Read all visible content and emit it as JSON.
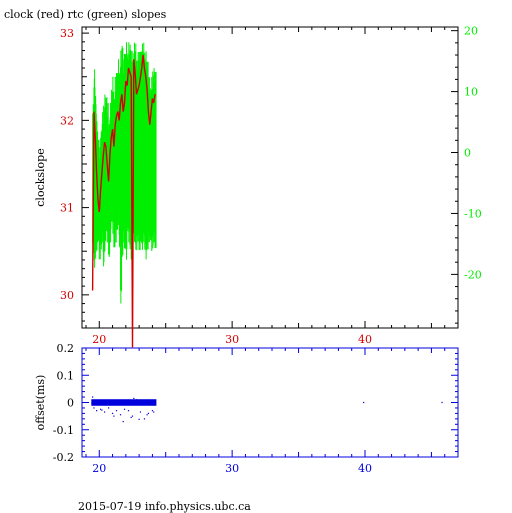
{
  "title": "clock (red) rtc (green) slopes",
  "footer": "2015-07-19 info.physics.ubc.ca",
  "colors": {
    "red": "#d40000",
    "green": "#00ee00",
    "blue": "#0000dd",
    "axis": "#000000"
  },
  "chart_data": [
    {
      "type": "line",
      "panel": "top",
      "ylabel": "clockslope",
      "xlim": [
        18.7,
        47
      ],
      "ylim_left": [
        29.62,
        33.07
      ],
      "ylim_right": [
        -28.8,
        20.6
      ],
      "x_ticks": [
        20,
        30,
        40
      ],
      "y_left_ticks": [
        30,
        31,
        32,
        33
      ],
      "y_right_ticks": [
        -20,
        -10,
        0,
        10,
        20
      ],
      "series": [
        {
          "name": "clock",
          "color": "red",
          "axis": "left",
          "x": [
            19.5,
            19.6,
            19.7,
            19.8,
            19.9,
            20.0,
            20.1,
            20.2,
            20.3,
            20.4,
            20.5,
            20.6,
            20.7,
            20.8,
            20.9,
            21.0,
            21.1,
            21.2,
            21.3,
            21.4,
            21.5,
            21.6,
            21.7,
            21.8,
            21.9,
            22.0,
            22.1,
            22.2,
            22.3,
            22.4,
            22.5,
            22.6,
            22.7,
            22.8,
            22.9,
            23.0,
            23.1,
            23.2,
            23.3,
            23.4,
            23.5,
            23.6,
            23.7,
            23.8,
            23.9,
            24.0,
            24.1,
            24.2
          ],
          "values": [
            30.05,
            32.1,
            31.8,
            31.4,
            31.1,
            30.95,
            31.2,
            31.4,
            31.6,
            31.75,
            31.7,
            31.5,
            31.3,
            31.6,
            31.8,
            31.9,
            31.7,
            31.95,
            32.05,
            32.1,
            32.0,
            32.2,
            32.3,
            32.1,
            32.2,
            32.45,
            32.4,
            32.6,
            32.55,
            32.5,
            29.4,
            32.7,
            32.55,
            32.3,
            32.35,
            32.4,
            32.5,
            32.6,
            32.75,
            32.6,
            32.5,
            32.35,
            32.1,
            31.95,
            32.1,
            32.25,
            32.2,
            32.3
          ]
        },
        {
          "name": "rtc",
          "color": "green",
          "axis": "left",
          "x": [
            19.5,
            19.6,
            19.7,
            19.8,
            19.9,
            20.0,
            20.1,
            20.2,
            20.3,
            20.4,
            20.5,
            20.6,
            20.7,
            20.8,
            20.9,
            21.0,
            21.1,
            21.2,
            21.3,
            21.4,
            21.5,
            21.6,
            21.7,
            21.8,
            21.9,
            22.0,
            22.1,
            22.2,
            22.3,
            22.4,
            22.5,
            22.6,
            22.7,
            22.8,
            22.9,
            23.0,
            23.1,
            23.2,
            23.3,
            23.4,
            23.5,
            23.6,
            23.7,
            23.8,
            23.9,
            24.0,
            24.1,
            24.2
          ],
          "values_high": [
            32.2,
            32.6,
            32.3,
            32.0,
            31.8,
            31.7,
            31.9,
            32.1,
            32.2,
            32.3,
            32.3,
            32.2,
            32.0,
            32.2,
            32.4,
            32.5,
            32.3,
            32.5,
            32.6,
            32.7,
            32.6,
            32.8,
            32.9,
            32.7,
            32.8,
            32.9,
            32.8,
            32.9,
            32.9,
            32.8,
            32.7,
            32.9,
            32.9,
            32.7,
            32.8,
            32.8,
            32.8,
            32.9,
            32.9,
            32.8,
            32.8,
            32.7,
            32.5,
            32.4,
            32.5,
            32.6,
            32.6,
            32.6
          ],
          "values_low": [
            30.5,
            30.3,
            30.4,
            30.5,
            30.6,
            30.4,
            30.5,
            30.6,
            30.3,
            30.5,
            30.7,
            30.6,
            30.4,
            30.6,
            30.8,
            30.7,
            30.5,
            30.6,
            30.7,
            30.8,
            30.5,
            29.9,
            30.4,
            30.6,
            30.5,
            30.4,
            30.7,
            30.6,
            30.5,
            30.4,
            30.7,
            30.6,
            30.5,
            30.5,
            30.6,
            30.5,
            30.6,
            30.5,
            30.6,
            30.5,
            30.4,
            30.5,
            30.6,
            30.6,
            30.5,
            30.5,
            30.6,
            30.5
          ]
        }
      ]
    },
    {
      "type": "scatter",
      "panel": "bottom",
      "ylabel": "offset(ms)",
      "xlim": [
        18.7,
        47
      ],
      "ylim": [
        -0.2,
        0.2
      ],
      "x_ticks": [
        20,
        30,
        40
      ],
      "y_ticks": [
        -0.2,
        -0.1,
        0,
        0.1,
        0.2
      ],
      "y_tick_labels": [
        "-0.2",
        "-0.1",
        "0",
        "0.1",
        "0.2"
      ],
      "series": [
        {
          "name": "offset",
          "color": "blue",
          "band": {
            "x_start": 19.4,
            "x_end": 24.3,
            "center": 0.0,
            "half_width": 0.012
          },
          "x": [
            19.5,
            19.8,
            20.1,
            20.4,
            20.7,
            21.0,
            21.3,
            21.6,
            21.9,
            22.2,
            22.5,
            22.8,
            23.1,
            23.4,
            23.7,
            24.0,
            19.6,
            20.2,
            21.1,
            21.8,
            22.4,
            23.0,
            23.6,
            24.1,
            22.6,
            39.9,
            45.8
          ],
          "values": [
            0.02,
            -0.03,
            -0.025,
            -0.035,
            -0.02,
            -0.04,
            -0.03,
            -0.045,
            -0.025,
            -0.03,
            -0.05,
            0.01,
            -0.035,
            -0.06,
            -0.04,
            -0.03,
            -0.02,
            -0.028,
            -0.05,
            -0.07,
            -0.055,
            -0.062,
            -0.045,
            -0.035,
            0.015,
            0.0,
            0.0
          ]
        }
      ]
    }
  ]
}
